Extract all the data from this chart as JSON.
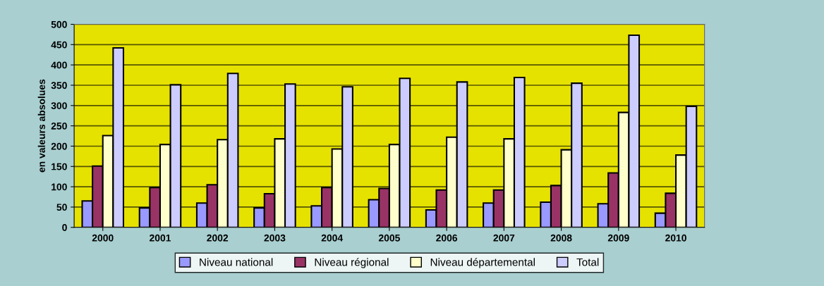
{
  "chart_data": {
    "type": "bar",
    "ylabel": "en valeurs absolues",
    "categories": [
      "2000",
      "2001",
      "2002",
      "2003",
      "2004",
      "2005",
      "2006",
      "2007",
      "2008",
      "2009",
      "2010"
    ],
    "series": [
      {
        "name": "Niveau national",
        "color": "#9999ff",
        "values": [
          65,
          48,
          60,
          48,
          53,
          68,
          43,
          60,
          62,
          58,
          35
        ]
      },
      {
        "name": "Niveau régional",
        "color": "#993366",
        "values": [
          151,
          98,
          105,
          83,
          98,
          96,
          92,
          92,
          103,
          134,
          84
        ]
      },
      {
        "name": "Niveau départemental",
        "color": "#ffffcc",
        "values": [
          226,
          204,
          216,
          218,
          193,
          204,
          222,
          218,
          191,
          283,
          178
        ]
      },
      {
        "name": "Total",
        "color": "#ccccff",
        "values": [
          442,
          351,
          379,
          353,
          346,
          367,
          358,
          369,
          355,
          473,
          298
        ]
      }
    ],
    "ylim": [
      0,
      500
    ],
    "yticks": [
      0,
      50,
      100,
      150,
      200,
      250,
      300,
      350,
      400,
      450,
      500
    ],
    "grid": "y",
    "legend": "bottom"
  }
}
